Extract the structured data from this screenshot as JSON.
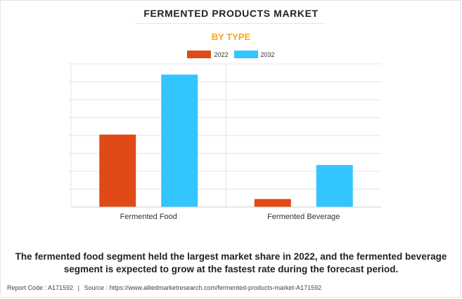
{
  "header": {
    "title": "FERMENTED PRODUCTS MARKET",
    "subtitle": "BY TYPE"
  },
  "colors": {
    "series_2022": "#e04a17",
    "series_2032": "#33c5ff",
    "subtitle": "#f5a623"
  },
  "chart_data": {
    "type": "bar",
    "title": "FERMENTED PRODUCTS MARKET",
    "subtitle": "BY TYPE",
    "categories": [
      "Fermented Food",
      "Fermented Beverage"
    ],
    "series": [
      {
        "name": "2022",
        "values": [
          40.5,
          4.5
        ]
      },
      {
        "name": "2032",
        "values": [
          74.0,
          23.5
        ]
      }
    ],
    "ylim": [
      0,
      80
    ],
    "grid": true,
    "legend": "top-center"
  },
  "caption": "The fermented food segment held the largest market share in 2022, and the fermented beverage segment is expected to grow at the fastest rate during the forecast period.",
  "source": {
    "report_code": "Report Code : A171592",
    "separator": "|",
    "source_text": "Source : https://www.alliedmarketresearch.com/fermented-products-market-A171592"
  }
}
